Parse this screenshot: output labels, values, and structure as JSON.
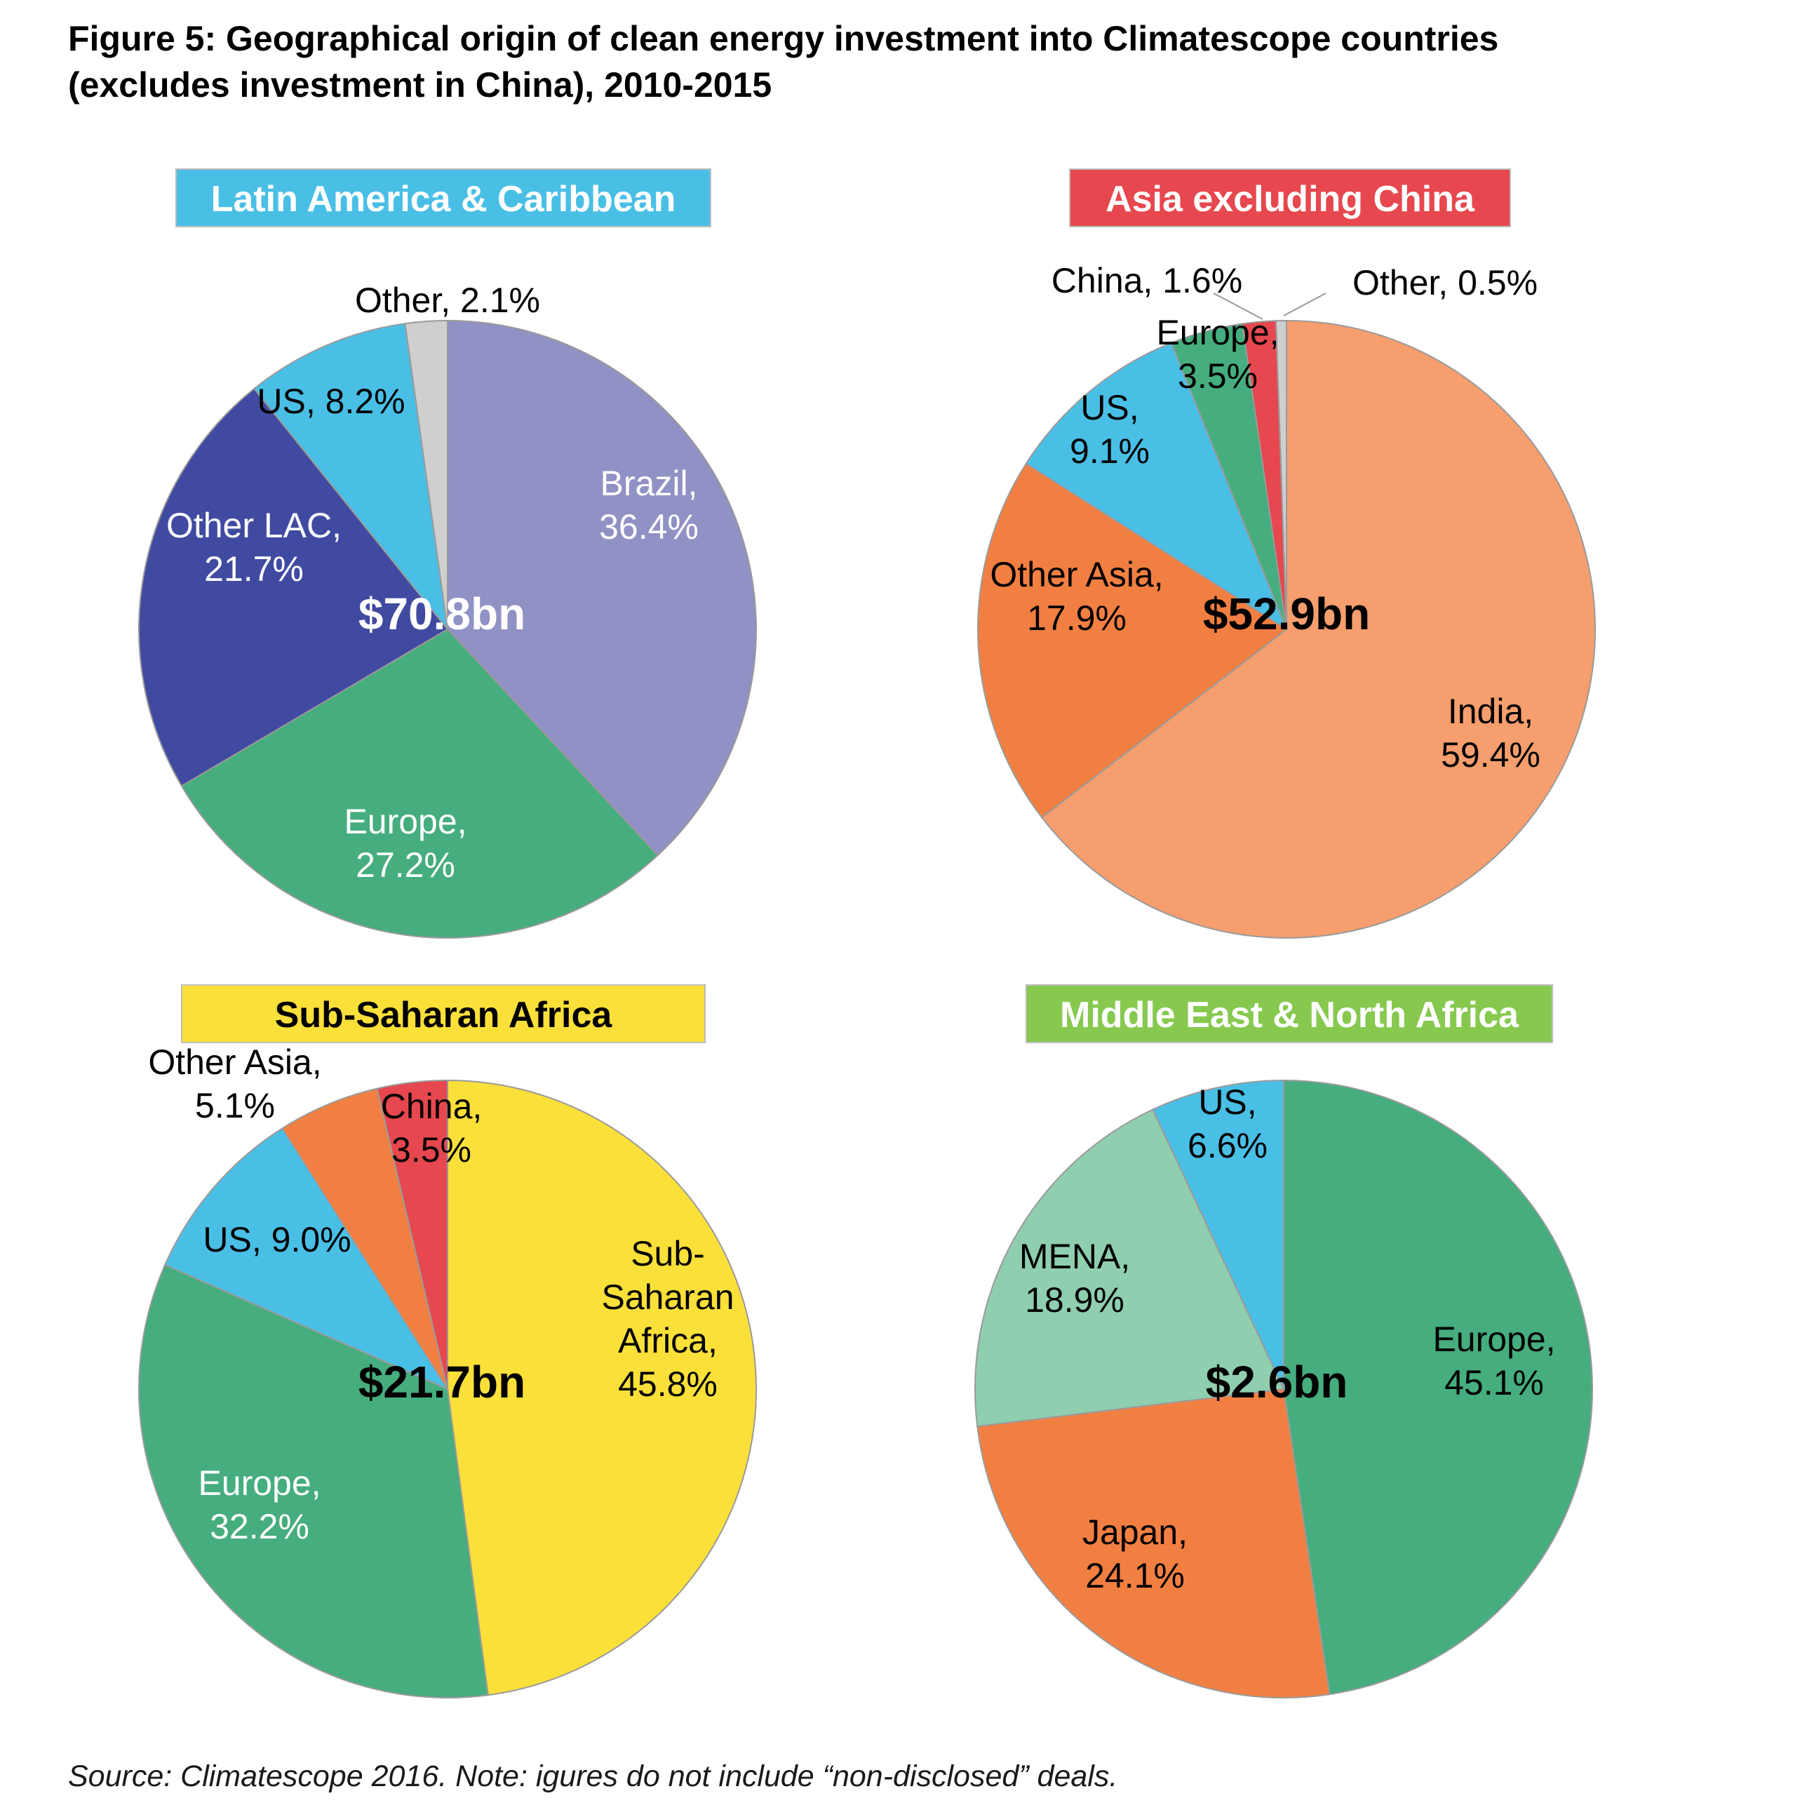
{
  "figure": {
    "title_line1": "Figure 5: Geographical origin of clean energy investment into Climatescope countries",
    "title_line2": "(excludes investment in China), 2010-2015",
    "source": "Source: Climatescope 2016. Note: igures do not include “non-disclosed” deals."
  },
  "chart_data": [
    {
      "type": "pie",
      "title": "Latin America & Caribbean",
      "title_bg": "#4abfe6",
      "title_color": "#ffffff",
      "total": "$70.8bn",
      "total_color": "#ffffff",
      "slices": [
        {
          "name": "Brazil",
          "value": 36.4,
          "label1": "Brazil,",
          "label2": "36.4%",
          "color": "#9091c4",
          "text_color": "#ffffff"
        },
        {
          "name": "Europe",
          "value": 27.2,
          "label1": "Europe,",
          "label2": "27.2%",
          "color": "#46ad7e",
          "text_color": "#ffffff"
        },
        {
          "name": "Other LAC",
          "value": 21.7,
          "label1": "Other LAC,",
          "label2": "21.7%",
          "color": "#414aa1",
          "text_color": "#ffffff"
        },
        {
          "name": "US",
          "value": 8.2,
          "label1": "US, 8.2%",
          "label2": "",
          "color": "#4abfe6",
          "text_color": "#000000"
        },
        {
          "name": "Other",
          "value": 2.1,
          "label1": "Other, 2.1%",
          "label2": "",
          "color": "#d0cfcf",
          "text_color": "#000000"
        }
      ]
    },
    {
      "type": "pie",
      "title": "Asia excluding China",
      "title_bg": "#e7474e",
      "title_color": "#ffffff",
      "total": "$52.9bn",
      "total_color": "#000000",
      "slices": [
        {
          "name": "India",
          "value": 59.4,
          "label1": "India,",
          "label2": "59.4%",
          "color": "#f69e6e",
          "text_color": "#000000"
        },
        {
          "name": "Other Asia",
          "value": 17.9,
          "label1": "Other Asia,",
          "label2": "17.9%",
          "color": "#f27f42",
          "text_color": "#000000"
        },
        {
          "name": "US",
          "value": 9.1,
          "label1": "US,",
          "label2": "9.1%",
          "color": "#4abfe6",
          "text_color": "#000000"
        },
        {
          "name": "Europe",
          "value": 3.5,
          "label1": "Europe,",
          "label2": "3.5%",
          "color": "#46ad7e",
          "text_color": "#000000"
        },
        {
          "name": "China",
          "value": 1.6,
          "label1": "China, 1.6%",
          "label2": "",
          "color": "#e7474e",
          "text_color": "#000000"
        },
        {
          "name": "Other",
          "value": 0.5,
          "label1": "Other, 0.5%",
          "label2": "",
          "color": "#d0cfcf",
          "text_color": "#000000"
        }
      ]
    },
    {
      "type": "pie",
      "title": "Sub-Saharan Africa",
      "title_bg": "#fce03a",
      "title_color": "#000000",
      "total": "$21.7bn",
      "total_color": "#000000",
      "slices": [
        {
          "name": "Sub-Saharan Africa",
          "value": 45.8,
          "label1": "Sub-",
          "label2": "Saharan",
          "label3": "Africa,",
          "label4": "45.8%",
          "color": "#fce03a",
          "text_color": "#000000"
        },
        {
          "name": "Europe",
          "value": 32.2,
          "label1": "Europe,",
          "label2": "32.2%",
          "color": "#46ad7e",
          "text_color": "#ffffff"
        },
        {
          "name": "US",
          "value": 9.0,
          "label1": "US, 9.0%",
          "label2": "",
          "color": "#4abfe6",
          "text_color": "#000000"
        },
        {
          "name": "Other Asia",
          "value": 5.1,
          "label1": "Other Asia,",
          "label2": "5.1%",
          "color": "#f27f42",
          "text_color": "#000000"
        },
        {
          "name": "China",
          "value": 3.5,
          "label1": "China,",
          "label2": "3.5%",
          "color": "#e7474e",
          "text_color": "#000000"
        }
      ]
    },
    {
      "type": "pie",
      "title": "Middle East & North Africa",
      "title_bg": "#86c94e",
      "title_color": "#ffffff",
      "total": "$2.6bn",
      "total_color": "#000000",
      "slices": [
        {
          "name": "Europe",
          "value": 45.1,
          "label1": "Europe,",
          "label2": "45.1%",
          "color": "#46ad7e",
          "text_color": "#000000"
        },
        {
          "name": "Japan",
          "value": 24.1,
          "label1": "Japan,",
          "label2": "24.1%",
          "color": "#f27f42",
          "text_color": "#000000"
        },
        {
          "name": "MENA",
          "value": 18.9,
          "label1": "MENA,",
          "label2": "18.9%",
          "color": "#8fceae",
          "text_color": "#000000"
        },
        {
          "name": "US",
          "value": 6.6,
          "label1": "US,",
          "label2": "6.6%",
          "color": "#4abfe6",
          "text_color": "#000000"
        }
      ]
    }
  ]
}
